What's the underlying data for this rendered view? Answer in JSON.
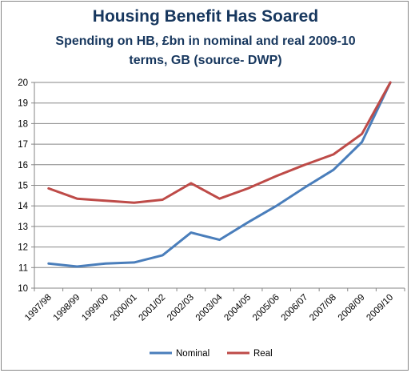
{
  "chart_data": {
    "type": "line",
    "title": "Housing Benefit Has Soared",
    "subtitle_lines": [
      "Spending on HB, £bn in nominal and real 2009-10",
      "terms, GB (source- DWP)"
    ],
    "xlabel": "",
    "ylabel": "",
    "ylim": [
      10,
      20
    ],
    "yticks": [
      10,
      11,
      12,
      13,
      14,
      15,
      16,
      17,
      18,
      19,
      20
    ],
    "grid": "horizontal",
    "legend_position": "bottom",
    "categories": [
      "1997/98",
      "1998/99",
      "1999/00",
      "2000/01",
      "2001/02",
      "2002/03",
      "2003/04",
      "2004/05",
      "2005/06",
      "2006/07",
      "2007/08",
      "2008/09",
      "2009/10"
    ],
    "series": [
      {
        "name": "Nominal",
        "color": "#4a7ebb",
        "values": [
          11.2,
          11.05,
          11.2,
          11.25,
          11.6,
          12.7,
          12.35,
          13.2,
          14.0,
          14.9,
          15.75,
          17.1,
          20.0
        ]
      },
      {
        "name": "Real",
        "color": "#be4b48",
        "values": [
          14.85,
          14.35,
          14.25,
          14.15,
          14.3,
          15.1,
          14.35,
          14.85,
          15.45,
          16.0,
          16.5,
          17.5,
          20.0
        ]
      }
    ]
  }
}
